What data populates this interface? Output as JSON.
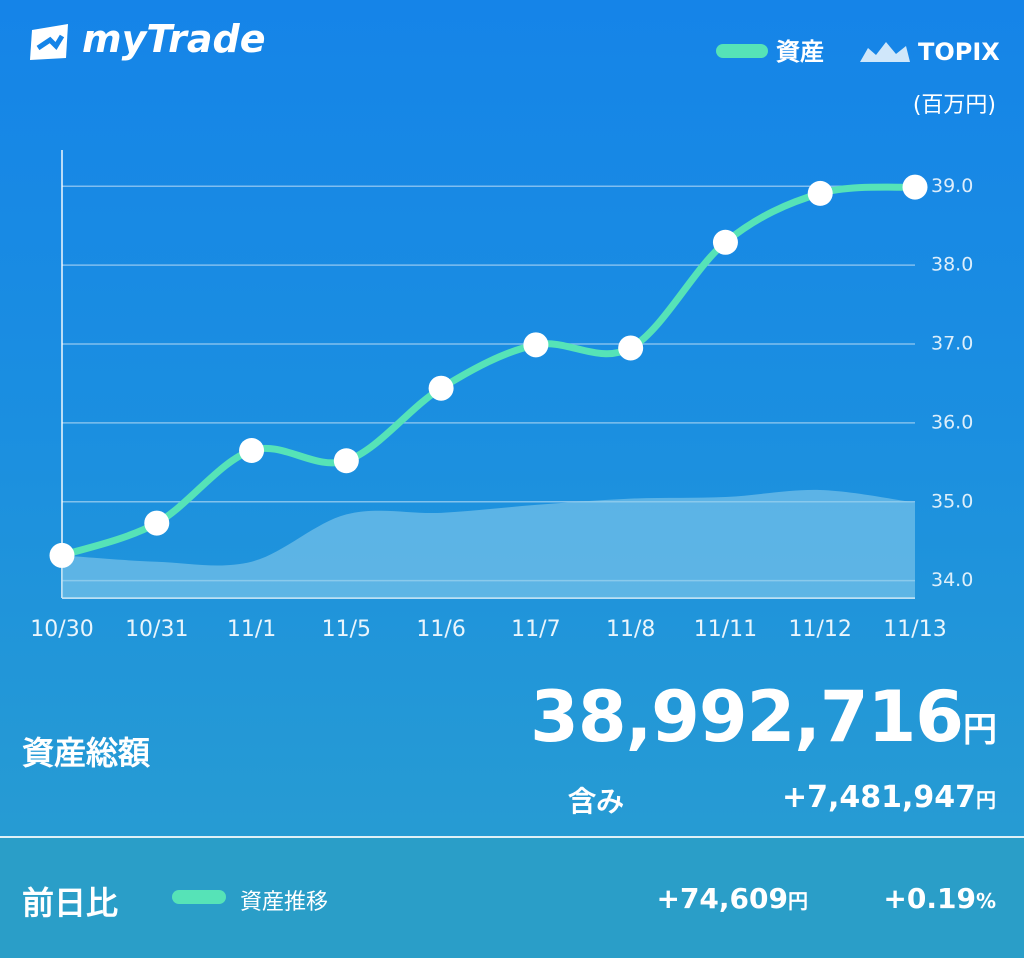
{
  "header": {
    "logo": "myTrade"
  },
  "chart_data": {
    "type": "line",
    "unit": "(百万円)",
    "categories": [
      "10/30",
      "10/31",
      "11/1",
      "11/5",
      "11/6",
      "11/7",
      "11/8",
      "11/11",
      "11/12",
      "11/13"
    ],
    "series": [
      {
        "name": "資産",
        "color": "#56e3b7",
        "values": [
          34.32,
          34.73,
          35.65,
          35.52,
          36.44,
          36.99,
          36.95,
          38.29,
          38.91,
          38.99
        ]
      },
      {
        "name": "TOPIX",
        "color": "#8fd0ec",
        "style": "area",
        "values": [
          34.32,
          34.24,
          34.24,
          34.84,
          34.86,
          34.96,
          35.04,
          35.06,
          35.15,
          34.99
        ]
      }
    ],
    "ylim": [
      33.78,
      39.46
    ],
    "yticks": [
      {
        "value": 34,
        "label": "34.0"
      },
      {
        "value": 35,
        "label": "35.0"
      },
      {
        "value": 36,
        "label": "36.0"
      },
      {
        "value": 37,
        "label": "37.0"
      },
      {
        "value": 38,
        "label": "38.0"
      },
      {
        "value": 39,
        "label": "39.0"
      }
    ],
    "grid": true
  },
  "summary": {
    "total_label": "資産総額",
    "total_value": "38,992,716",
    "total_unit": "円",
    "unrealized_label": "含み",
    "unrealized_value": "+7,481,947",
    "unrealized_unit": "円"
  },
  "footer": {
    "label": "前日比",
    "legend": "資産推移",
    "change_value": "+74,609",
    "change_unit": "円",
    "percent_value": "+0.19",
    "percent_unit": "%"
  }
}
